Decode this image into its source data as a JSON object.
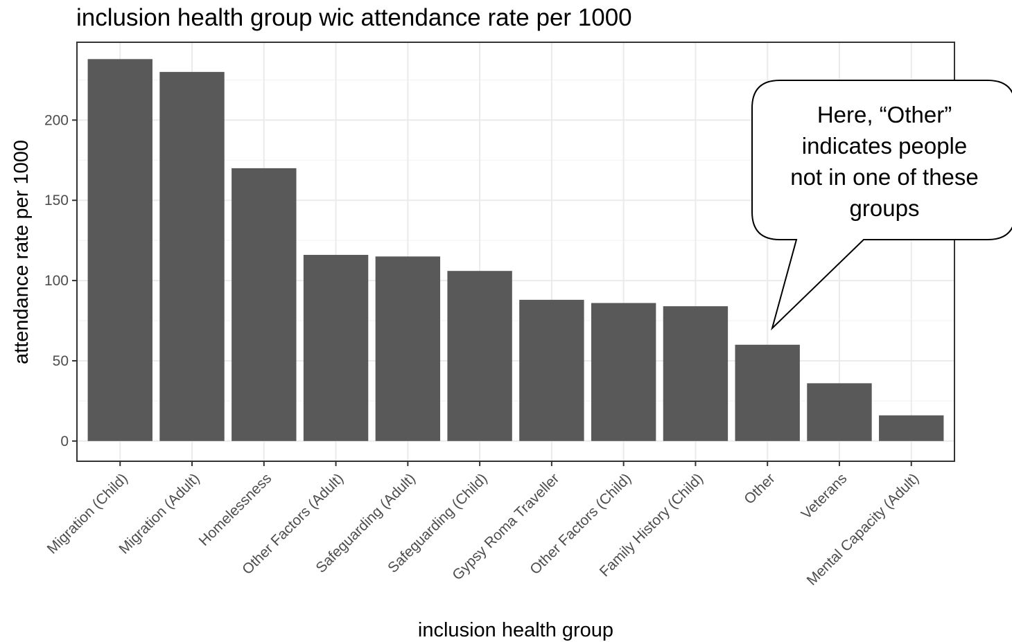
{
  "chart_data": {
    "type": "bar",
    "title": "inclusion health group wic attendance rate per 1000",
    "xlabel": "inclusion health group",
    "ylabel": "attendance rate per 1000",
    "categories": [
      "Migration (Child)",
      "Migration (Adult)",
      "Homelessness",
      "Other Factors (Adult)",
      "Safeguarding (Adult)",
      "Safeguarding (Child)",
      "Gypsy Roma Traveller",
      "Other Factors (Child)",
      "Family History (Child)",
      "Other",
      "Veterans",
      "Mental Capacity (Adult)"
    ],
    "values": [
      238,
      230,
      170,
      116,
      115,
      106,
      88,
      86,
      84,
      60,
      36,
      16
    ],
    "ylim": [
      -12.6,
      248.5
    ],
    "yticks": [
      0,
      50,
      100,
      150,
      200
    ],
    "grid": true,
    "bar_color": "#595959",
    "annotation": {
      "lines": [
        "Here, “Other”",
        "indicates people",
        "not in one of these",
        "groups"
      ],
      "points_to": "Other"
    }
  }
}
